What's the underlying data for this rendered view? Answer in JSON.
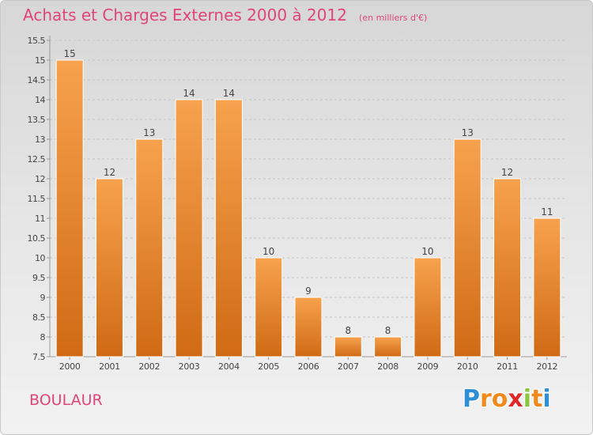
{
  "chart_data": {
    "type": "bar",
    "title": "Achats et Charges Externes 2000 à 2012",
    "unit_note": "(en milliers d'€)",
    "categories": [
      "2000",
      "2001",
      "2002",
      "2003",
      "2004",
      "2005",
      "2006",
      "2007",
      "2008",
      "2009",
      "2010",
      "2011",
      "2012"
    ],
    "values": [
      15,
      12,
      13,
      14,
      14,
      10,
      9,
      8,
      8,
      10,
      13,
      12,
      11
    ],
    "ylim": [
      7.5,
      15.5
    ],
    "yticks": [
      "7.5",
      "8",
      "8.5",
      "9",
      "9.5",
      "10",
      "10.5",
      "11",
      "11.5",
      "12",
      "12.5",
      "13",
      "13.5",
      "14",
      "14.5",
      "15",
      "15.5"
    ],
    "grid": "horizontal dashed",
    "bar_color_top": "#f7a24e",
    "bar_color_bottom": "#d06a14"
  },
  "place": "BOULAUR",
  "brand": {
    "letters": [
      "P",
      "r",
      "o",
      "x",
      "i",
      "t",
      "i"
    ],
    "colors": [
      "#2f8fd6",
      "#f08a1c",
      "#f08a1c",
      "#e02828",
      "#8cc63f",
      "#f08a1c",
      "#2f8fd6"
    ]
  }
}
